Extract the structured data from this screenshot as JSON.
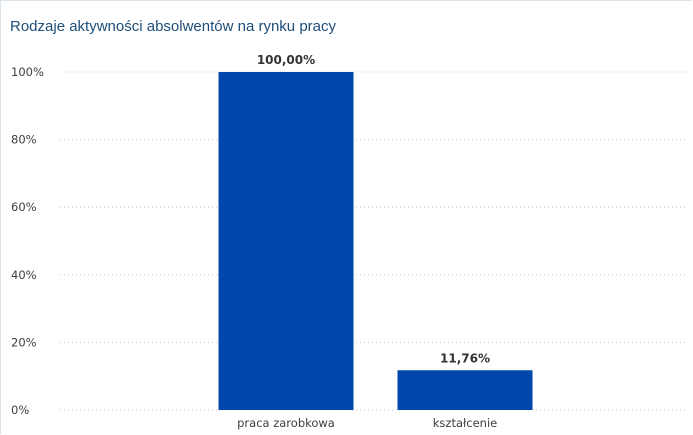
{
  "title": "Rodzaje aktywności absolwentów na rynku pracy",
  "chart_data": {
    "type": "bar",
    "title": "Rodzaje aktywności absolwentów na rynku pracy",
    "categories": [
      "praca zarobkowa",
      "kształcenie"
    ],
    "values": [
      100.0,
      11.76
    ],
    "data_labels": [
      "100,00%",
      "11,76%"
    ],
    "y_ticks": [
      "0%",
      "20%",
      "40%",
      "60%",
      "80%",
      "100%"
    ],
    "ylim": [
      0,
      100
    ],
    "grid": true,
    "legend": "none",
    "bar_color": "#0047AB"
  }
}
